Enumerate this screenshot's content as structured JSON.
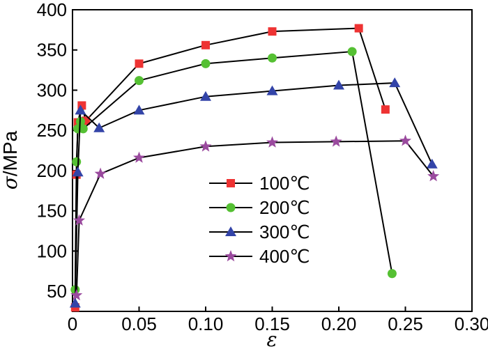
{
  "chart_data": {
    "type": "line",
    "title": "",
    "xlabel": "ε",
    "ylabel_symbol": "σ",
    "ylabel_unit": "/MPa",
    "xlim": [
      0,
      0.3
    ],
    "ylim": [
      25,
      400
    ],
    "x_ticks": [
      0,
      0.05,
      0.1,
      0.15,
      0.2,
      0.25,
      0.3
    ],
    "x_tick_labels": [
      "0",
      "0.05",
      "0.10",
      "0.15",
      "0.20",
      "0.25",
      "0.30"
    ],
    "y_ticks": [
      50,
      100,
      150,
      200,
      250,
      300,
      350,
      400
    ],
    "y_tick_labels": [
      "50",
      "100",
      "150",
      "200",
      "250",
      "300",
      "350",
      "400"
    ],
    "legend_position": "center",
    "series": [
      {
        "name": "100℃",
        "marker": "square",
        "color": "#ee3333",
        "x": [
          0.002,
          0.003,
          0.004,
          0.007,
          0.01,
          0.05,
          0.1,
          0.15,
          0.215,
          0.235
        ],
        "y": [
          30,
          195,
          260,
          281,
          262,
          333,
          356,
          373,
          377,
          276
        ]
      },
      {
        "name": "200℃",
        "marker": "circle",
        "color": "#55c033",
        "x": [
          0.002,
          0.003,
          0.004,
          0.006,
          0.008,
          0.05,
          0.1,
          0.15,
          0.21,
          0.24
        ],
        "y": [
          52,
          211,
          252,
          261,
          252,
          312,
          333,
          340,
          348,
          72
        ]
      },
      {
        "name": "300℃",
        "marker": "triangle",
        "color": "#3344a8",
        "x": [
          0.002,
          0.004,
          0.006,
          0.02,
          0.05,
          0.1,
          0.15,
          0.2,
          0.242,
          0.27
        ],
        "y": [
          35,
          198,
          275,
          253,
          275,
          292,
          299,
          306,
          309,
          208
        ]
      },
      {
        "name": "400℃",
        "marker": "star",
        "color": "#9a4a9e",
        "x": [
          0.003,
          0.005,
          0.021,
          0.05,
          0.1,
          0.15,
          0.198,
          0.25,
          0.271
        ],
        "y": [
          45,
          138,
          196,
          216,
          230,
          235,
          236,
          237,
          193
        ]
      }
    ]
  }
}
